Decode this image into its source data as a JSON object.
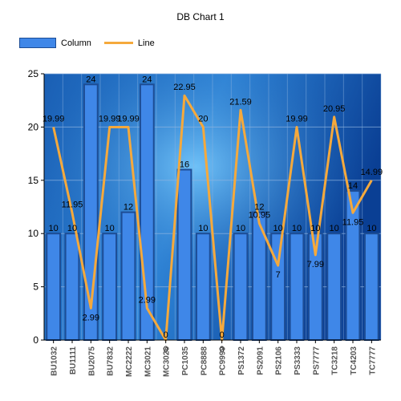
{
  "chart_data": {
    "type": "bar",
    "title": "DB Chart 1",
    "xlabel": "",
    "ylabel": "",
    "ylim": [
      0,
      25
    ],
    "yticks": [
      0,
      5,
      10,
      15,
      20,
      25
    ],
    "grid": true,
    "legend_position": "top-left",
    "categories": [
      "BU1032",
      "BU1111",
      "BU2075",
      "BU7832",
      "MC2222",
      "MC3021",
      "MC3026",
      "PC1035",
      "PC8888",
      "PC9999",
      "PS1372",
      "PS2091",
      "PS2106",
      "PS3333",
      "PS7777",
      "TC3218",
      "TC4203",
      "TC7777"
    ],
    "series": [
      {
        "name": "Column",
        "type": "bar",
        "color": "#3f87e8",
        "values": [
          10,
          10,
          24,
          10,
          12,
          24,
          0,
          16,
          10,
          0,
          10,
          12,
          10,
          10,
          10,
          10,
          14,
          10
        ],
        "labels": [
          "10",
          "10",
          "24",
          "10",
          "12",
          "24",
          "0",
          "16",
          "10",
          "0",
          "10",
          "12",
          "10",
          "10",
          "10",
          "10",
          "14",
          "10"
        ]
      },
      {
        "name": "Line",
        "type": "line",
        "color": "#f5a93c",
        "values": [
          19.99,
          11.95,
          2.99,
          19.99,
          19.99,
          2.99,
          0,
          22.95,
          20,
          0,
          21.59,
          10.95,
          7,
          19.99,
          7.99,
          20.95,
          11.95,
          14.99
        ],
        "labels": [
          "19.99",
          "11.95",
          "2.99",
          "19.99",
          "19.99",
          "2.99",
          "0",
          "22.95",
          "20",
          "0",
          "21.59",
          "10.95",
          "7",
          "19.99",
          "7.99",
          "20.95",
          "11.95",
          "14.99"
        ]
      }
    ]
  }
}
